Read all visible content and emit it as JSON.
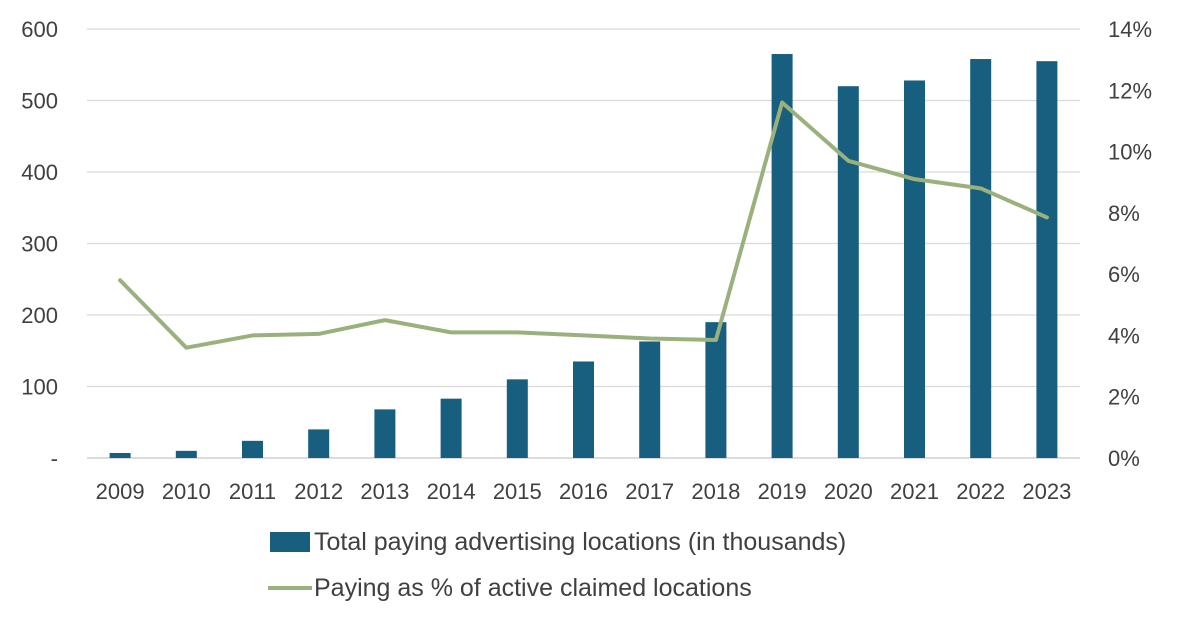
{
  "chart_data": {
    "type": "bar",
    "categories": [
      "2009",
      "2010",
      "2011",
      "2012",
      "2013",
      "2014",
      "2015",
      "2016",
      "2017",
      "2018",
      "2019",
      "2020",
      "2021",
      "2022",
      "2023"
    ],
    "series": [
      {
        "name": "Total paying advertising locations (in thousands)",
        "type": "bar",
        "axis": "left",
        "color": "#175e7f",
        "values": [
          7,
          10,
          24,
          40,
          68,
          83,
          110,
          135,
          163,
          190,
          565,
          520,
          528,
          558,
          555
        ]
      },
      {
        "name": "Paying as % of active claimed locations",
        "type": "line",
        "axis": "right",
        "color": "#9bb17d",
        "values": [
          5.8,
          3.6,
          4.0,
          4.05,
          4.5,
          4.1,
          4.1,
          4.0,
          3.9,
          3.85,
          11.6,
          9.7,
          9.1,
          8.8,
          7.85
        ]
      }
    ],
    "y_left": {
      "ylim": [
        0,
        600
      ],
      "ticks": [
        0,
        100,
        200,
        300,
        400,
        500,
        600
      ],
      "tick_labels": [
        "-",
        "100",
        "200",
        "300",
        "400",
        "500",
        "600"
      ]
    },
    "y_right": {
      "ylim": [
        0,
        14
      ],
      "ticks": [
        0,
        2,
        4,
        6,
        8,
        10,
        12,
        14
      ],
      "tick_labels": [
        "0%",
        "2%",
        "4%",
        "6%",
        "8%",
        "10%",
        "12%",
        "14%"
      ]
    },
    "grid": true,
    "legend_position": "bottom",
    "title": "",
    "xlabel": "",
    "ylabel": ""
  }
}
